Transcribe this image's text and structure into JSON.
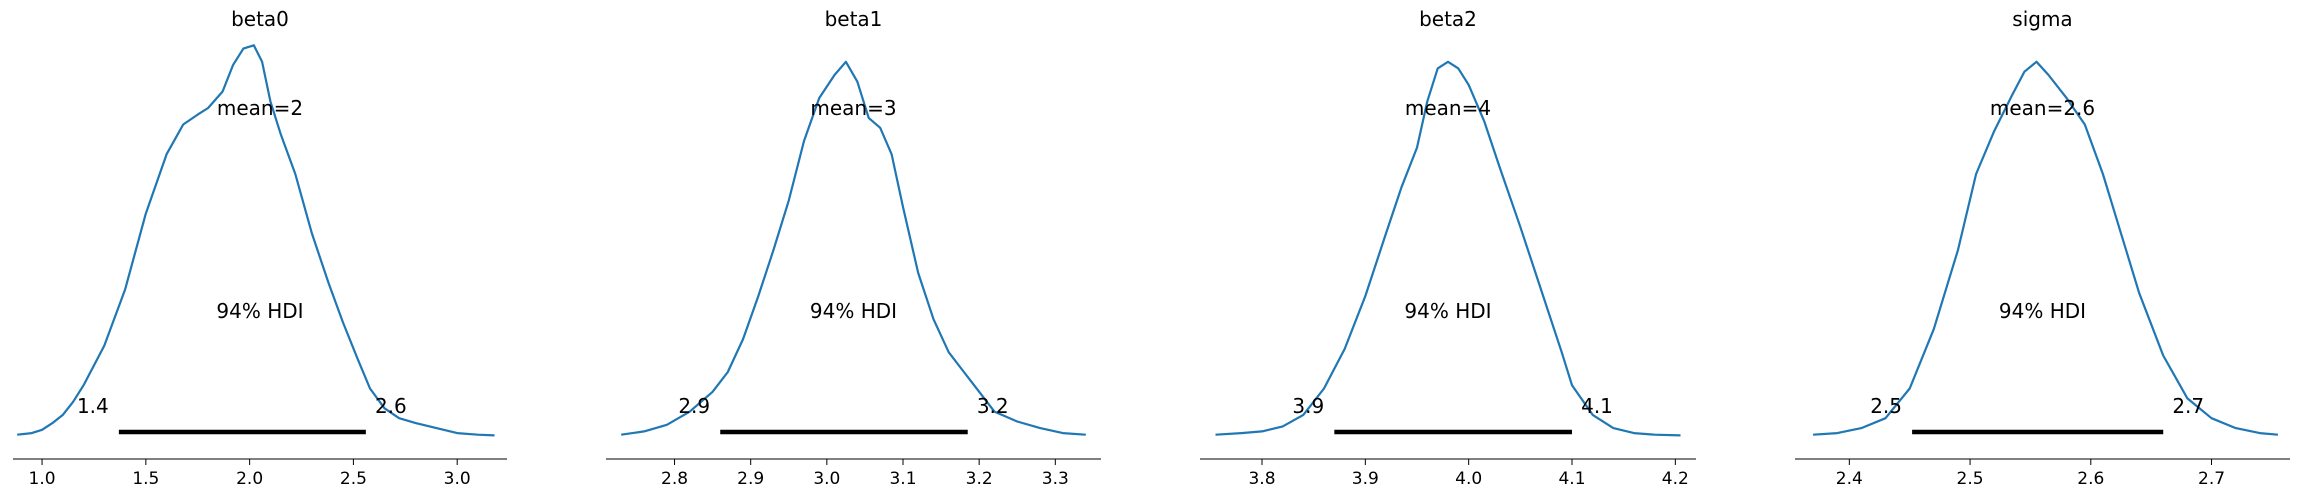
{
  "chart_data": [
    {
      "type": "line",
      "title": "beta0",
      "mean_label": "mean=2",
      "hdi_label": "94% HDI",
      "hdi": [
        1.37,
        2.56
      ],
      "hdi_low_label": "1.4",
      "hdi_high_label": "2.6",
      "color": "#1f77b4",
      "xlim": [
        0.86,
        3.24
      ],
      "xticks": [
        1.0,
        1.5,
        2.0,
        2.5,
        3.0
      ],
      "xtick_labels": [
        "1.0",
        "1.5",
        "2.0",
        "2.5",
        "3.0"
      ],
      "x": [
        0.88,
        0.95,
        1.0,
        1.05,
        1.1,
        1.15,
        1.2,
        1.3,
        1.4,
        1.5,
        1.6,
        1.68,
        1.75,
        1.8,
        1.87,
        1.92,
        1.97,
        2.02,
        2.06,
        2.1,
        2.15,
        2.22,
        2.3,
        2.38,
        2.45,
        2.52,
        2.58,
        2.65,
        2.72,
        2.8,
        2.9,
        3.0,
        3.1,
        3.18
      ],
      "y": [
        0.01,
        0.015,
        0.025,
        0.045,
        0.07,
        0.11,
        0.16,
        0.28,
        0.45,
        0.68,
        0.86,
        0.95,
        0.98,
        1.0,
        1.05,
        1.13,
        1.18,
        1.19,
        1.14,
        1.02,
        0.92,
        0.8,
        0.62,
        0.47,
        0.35,
        0.24,
        0.15,
        0.09,
        0.06,
        0.045,
        0.03,
        0.015,
        0.01,
        0.008
      ]
    },
    {
      "type": "line",
      "title": "beta1",
      "mean_label": "mean=3",
      "hdi_label": "94% HDI",
      "hdi": [
        2.86,
        3.185
      ],
      "hdi_low_label": "2.9",
      "hdi_high_label": "3.2",
      "color": "#1f77b4",
      "xlim": [
        2.71,
        3.36
      ],
      "xticks": [
        2.8,
        2.9,
        3.0,
        3.1,
        3.2,
        3.3
      ],
      "xtick_labels": [
        "2.8",
        "2.9",
        "3.0",
        "3.1",
        "3.2",
        "3.3"
      ],
      "x": [
        2.73,
        2.76,
        2.79,
        2.82,
        2.85,
        2.87,
        2.89,
        2.91,
        2.93,
        2.95,
        2.97,
        2.99,
        3.01,
        3.025,
        3.04,
        3.055,
        3.07,
        3.085,
        3.1,
        3.12,
        3.14,
        3.16,
        3.18,
        3.2,
        3.22,
        3.25,
        3.28,
        3.31,
        3.34
      ],
      "y": [
        0.01,
        0.02,
        0.04,
        0.08,
        0.14,
        0.2,
        0.3,
        0.43,
        0.57,
        0.72,
        0.9,
        1.03,
        1.1,
        1.14,
        1.08,
        0.97,
        0.94,
        0.86,
        0.7,
        0.5,
        0.36,
        0.26,
        0.2,
        0.14,
        0.08,
        0.05,
        0.03,
        0.015,
        0.01
      ]
    },
    {
      "type": "line",
      "title": "beta2",
      "mean_label": "mean=4",
      "hdi_label": "94% HDI",
      "hdi": [
        3.87,
        4.1
      ],
      "hdi_low_label": "3.9",
      "hdi_high_label": "4.1",
      "color": "#1f77b4",
      "xlim": [
        3.74,
        4.22
      ],
      "xticks": [
        3.8,
        3.9,
        4.0,
        4.1,
        4.2
      ],
      "xtick_labels": [
        "3.8",
        "3.9",
        "4.0",
        "4.1",
        "4.2"
      ],
      "x": [
        3.755,
        3.78,
        3.8,
        3.82,
        3.84,
        3.86,
        3.88,
        3.9,
        3.92,
        3.935,
        3.95,
        3.96,
        3.97,
        3.98,
        3.99,
        4.0,
        4.015,
        4.03,
        4.05,
        4.07,
        4.09,
        4.1,
        4.12,
        4.14,
        4.16,
        4.18,
        4.205
      ],
      "y": [
        0.01,
        0.015,
        0.02,
        0.035,
        0.07,
        0.15,
        0.27,
        0.43,
        0.62,
        0.76,
        0.88,
        1.02,
        1.12,
        1.14,
        1.12,
        1.07,
        0.96,
        0.82,
        0.64,
        0.45,
        0.26,
        0.16,
        0.07,
        0.03,
        0.015,
        0.01,
        0.008
      ]
    },
    {
      "type": "line",
      "title": "sigma",
      "mean_label": "mean=2.6",
      "hdi_label": "94% HDI",
      "hdi": [
        2.452,
        2.66
      ],
      "hdi_low_label": "2.5",
      "hdi_high_label": "2.7",
      "color": "#1f77b4",
      "xlim": [
        2.355,
        2.765
      ],
      "xticks": [
        2.4,
        2.5,
        2.6,
        2.7
      ],
      "xtick_labels": [
        "2.4",
        "2.5",
        "2.6",
        "2.7"
      ],
      "x": [
        2.37,
        2.39,
        2.41,
        2.43,
        2.45,
        2.47,
        2.49,
        2.505,
        2.52,
        2.535,
        2.545,
        2.555,
        2.565,
        2.58,
        2.595,
        2.61,
        2.625,
        2.64,
        2.66,
        2.68,
        2.7,
        2.72,
        2.74,
        2.755
      ],
      "y": [
        0.01,
        0.015,
        0.03,
        0.06,
        0.15,
        0.33,
        0.57,
        0.8,
        0.93,
        1.04,
        1.11,
        1.14,
        1.1,
        1.03,
        0.95,
        0.8,
        0.62,
        0.44,
        0.25,
        0.12,
        0.06,
        0.03,
        0.015,
        0.01
      ]
    }
  ]
}
